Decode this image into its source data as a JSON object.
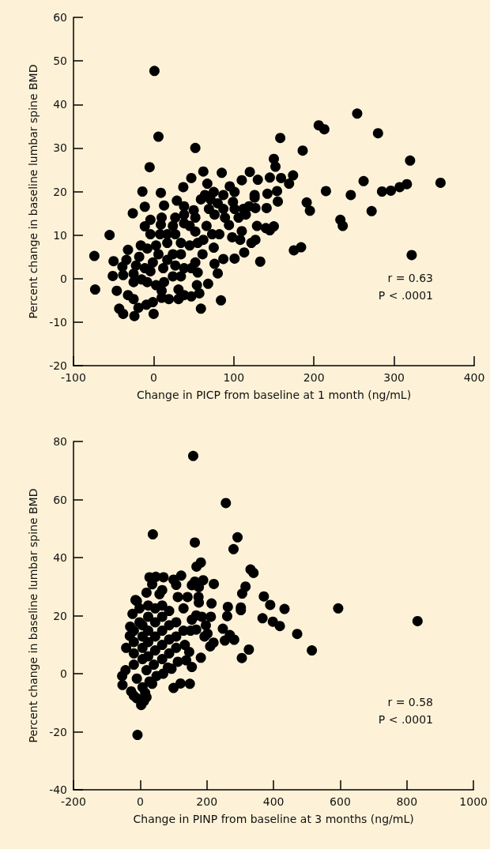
{
  "chart_data": [
    {
      "type": "scatter",
      "xlabel": "Change in PICP from baseline at 1 month (ng/mL)",
      "ylabel": "Percent change in baseline lumbar spine BMD",
      "xlim": [
        -100,
        400
      ],
      "xticks": [
        -100,
        0,
        100,
        200,
        300,
        400
      ],
      "ylim": [
        -20,
        60
      ],
      "yticks": [
        -20,
        -10,
        0,
        10,
        20,
        30,
        40,
        50,
        60
      ],
      "grid": false,
      "marker": "circle",
      "annotations": [
        "r = 0.63",
        "P < .0001"
      ],
      "series": [
        {
          "color": "#000000",
          "x": [
            1,
            6,
            -5,
            52,
            -55,
            -74,
            -73,
            -14,
            -11,
            -26,
            9,
            -43,
            -38,
            -24,
            0,
            59,
            84,
            68,
            133,
            87,
            101,
            113,
            80,
            76,
            62,
            47,
            37,
            85,
            120,
            130,
            110,
            145,
            150,
            152,
            158,
            159,
            174,
            169,
            154,
            142,
            155,
            141,
            126,
            127,
            129,
            150,
            145,
            140,
            127,
            122,
            108,
            110,
            98,
            82,
            94,
            106,
            115,
            99,
            87,
            95,
            75,
            67,
            59,
            50,
            38,
            29,
            13,
            10,
            9,
            -4,
            -11,
            -4,
            8,
            24,
            38,
            52,
            66,
            73,
            62,
            45,
            61,
            52,
            75,
            55,
            47,
            38,
            54,
            57,
            47,
            38,
            31,
            19,
            10,
            -1,
            -9,
            -19,
            -25,
            -32,
            -46,
            -51,
            -50,
            -38,
            -32,
            -34,
            -39,
            -25,
            -16,
            -18,
            -11,
            -8,
            3,
            13,
            24,
            34,
            27,
            17,
            6,
            -1,
            -8,
            3,
            17,
            27,
            34,
            17,
            27,
            38,
            45,
            52,
            55,
            34,
            24,
            12,
            -4,
            -15,
            -22,
            -25,
            10,
            31,
            80,
            87,
            69,
            76,
            89,
            101,
            112,
            119,
            126,
            71,
            64,
            101,
            186,
            206,
            213,
            254,
            280,
            320,
            262,
            246,
            215,
            285,
            296,
            307,
            316,
            358,
            272,
            233,
            236,
            191,
            195,
            175,
            184,
            322
          ],
          "values": [
            47.7,
            32.6,
            25.6,
            30,
            10,
            5.2,
            -2.5,
            20,
            16.5,
            15,
            19.7,
            -6.9,
            -8.1,
            -8.6,
            -8.1,
            -6.9,
            -5,
            -1.2,
            3.9,
            4.5,
            4.6,
            6,
            1.2,
            3.4,
            24.6,
            23.1,
            21,
            24.3,
            24.5,
            22.7,
            22.6,
            23.2,
            27.5,
            25.7,
            32.3,
            23.1,
            23.7,
            21.8,
            20.1,
            19.5,
            17.7,
            16.2,
            19.2,
            16.2,
            12.1,
            12,
            11.1,
            11.6,
            8.9,
            8.2,
            8.9,
            10.9,
            9.5,
            10.2,
            12.3,
            14,
            14.7,
            17.6,
            19.2,
            21.2,
            19.9,
            21.8,
            18.2,
            15.7,
            16.6,
            17.9,
            16.8,
            14,
            12.4,
            13.5,
            12,
            10.2,
            10.2,
            12.1,
            12.7,
            14,
            12.1,
            10.2,
            8.9,
            7.6,
            5.6,
            3.7,
            7.1,
            1.4,
            2.4,
            2.4,
            -1.5,
            -3.4,
            -4.1,
            -3.8,
            -2.5,
            -4.7,
            -4.4,
            -5.4,
            -6,
            -6.7,
            -4.7,
            -3.8,
            -2.8,
            0.6,
            4,
            0.8,
            6.6,
            4.3,
            2.7,
            -0.8,
            7.6,
            5,
            2.4,
            -0.8,
            -1.5,
            -0.8,
            0.5,
            0.5,
            3,
            4.3,
            5.6,
            3.7,
            6.9,
            7.6,
            8.2,
            10.2,
            8.2,
            10.2,
            14,
            14.7,
            12.1,
            10.8,
            8.2,
            5.6,
            5.6,
            2.4,
            1.7,
            -0.2,
            3,
            1.1,
            -2.8,
            -4.7,
            17.3,
            16,
            16,
            14.7,
            14,
            16,
            16,
            16.6,
            18.6,
            18.2,
            19.2,
            19.9,
            29.4,
            35.2,
            34.3,
            37.9,
            33.4,
            27.1,
            22.4,
            19.2,
            20.1,
            20,
            20.2,
            21,
            21.7,
            22,
            15.5,
            13.5,
            12.1,
            17.5,
            15.6,
            6.5,
            7.2,
            5.4
          ]
        }
      ]
    },
    {
      "type": "scatter",
      "xlabel": "Change in PINP from baseline at 3 months (ng/mL)",
      "ylabel": "Percent change in baseline lumbar spine BMD",
      "xlim": [
        -200,
        1000
      ],
      "xticks": [
        -200,
        0,
        200,
        400,
        600,
        800,
        1000
      ],
      "ylim": [
        -40,
        80
      ],
      "yticks": [
        -40,
        -20,
        0,
        20,
        40,
        60,
        80
      ],
      "grid": false,
      "marker": "circle",
      "annotations": [
        "r = 0.58",
        "P < .0001"
      ],
      "series": [
        {
          "color": "#000000",
          "x": [
            159,
            257,
            38,
            164,
            292,
            280,
            182,
            169,
            331,
            340,
            316,
            306,
            221,
            189,
            164,
            155,
            176,
            123,
            108,
            100,
            70,
            47,
            28,
            36,
            66,
            58,
            19,
            -10,
            371,
            390,
            433,
            594,
            832,
            367,
            398,
            419,
            471,
            515,
            326,
            305,
            263,
            302,
            302,
            261,
            214,
            212,
            175,
            176,
            248,
            269,
            282,
            254,
            220,
            210,
            182,
            155,
            94,
            69,
            149,
            121,
            100,
            36,
            3,
            -8,
            -54,
            -53,
            -44,
            -42,
            -31,
            -30,
            -23,
            -14,
            15,
            -19,
            19,
            -27,
            -10,
            7,
            -19,
            -19,
            -19,
            -19,
            -2,
            -2,
            7,
            7,
            7,
            7,
            19,
            24,
            24,
            24,
            24,
            24,
            41,
            45,
            45,
            45,
            45,
            66,
            66,
            66,
            66,
            66,
            87,
            87,
            87,
            87,
            108,
            108,
            108,
            113,
            142,
            130,
            130,
            134,
            147,
            138,
            113,
            168,
            185,
            197,
            202,
            193,
            168,
            155,
            151,
            83,
            49,
            28,
            -10,
            11
          ],
          "values": [
            75,
            58.8,
            48,
            45.2,
            47,
            42.9,
            38.3,
            36.9,
            35.9,
            34.7,
            30,
            27.6,
            30.9,
            32.2,
            31.7,
            30.5,
            29.8,
            33.8,
            30.6,
            32.4,
            33.2,
            33.4,
            33.2,
            30.8,
            28.8,
            27.4,
            27.9,
            25,
            26.6,
            23.7,
            22.3,
            22.5,
            18.1,
            19.1,
            17.9,
            16.4,
            13.7,
            8,
            8.3,
            5.4,
            23,
            22.8,
            21.9,
            19.8,
            24.2,
            19.6,
            26.4,
            24.5,
            15.5,
            13.3,
            11.7,
            11.4,
            10.7,
            9.4,
            5.5,
            2.3,
            1.7,
            0,
            -3.5,
            -3.4,
            -4.9,
            -3.5,
            -10.8,
            -21.1,
            -0.8,
            -3.9,
            1.2,
            8.9,
            13,
            16.2,
            20.6,
            25.4,
            -6.6,
            -7.6,
            -8.1,
            -6.1,
            -1.7,
            -4.7,
            3.1,
            7,
            10.9,
            14.8,
            17.7,
            22.5,
            5,
            8.9,
            12.8,
            16.7,
            1.2,
            6,
            10.9,
            14.8,
            19.6,
            23.5,
            3.1,
            8,
            12.8,
            17.7,
            22.5,
            5,
            9.9,
            14.8,
            19.6,
            23.5,
            7,
            11.8,
            16.7,
            21.6,
            8.9,
            12.8,
            17.7,
            26.4,
            26.4,
            22.5,
            14.8,
            9.9,
            7.5,
            4.6,
            4.1,
            20.1,
            19.6,
            16.7,
            13.8,
            12.8,
            15.2,
            18.6,
            14.8,
            2.1,
            -0.8,
            -2.7,
            -8.5,
            -9.5
          ]
        }
      ]
    }
  ]
}
